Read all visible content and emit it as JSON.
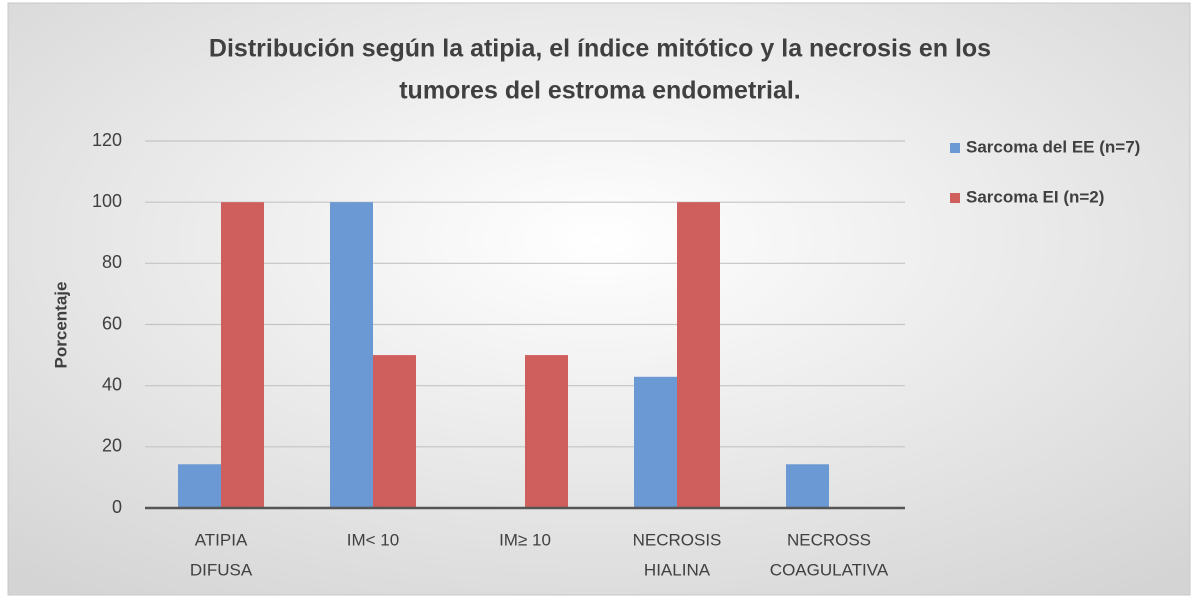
{
  "chart_data": {
    "type": "bar",
    "title": [
      "Distribución según la atipia, el índice mitótico y la necrosis en los",
      "tumores del estroma endometrial."
    ],
    "y_label": "Porcentaje",
    "categories": [
      [
        "ATIPIA",
        "DIFUSA"
      ],
      [
        "IM< 10"
      ],
      [
        "IM≥ 10"
      ],
      [
        "NECROSIS",
        "HIALINA"
      ],
      [
        "NECROSS",
        "COAGULATIVA"
      ]
    ],
    "series": [
      {
        "name": "Sarcoma del EE (n=7)",
        "color": "#6b99d3",
        "values": [
          14.3,
          100,
          0,
          42.9,
          14.3
        ]
      },
      {
        "name": "Sarcoma EI  (n=2)",
        "color": "#cf5f5d",
        "values": [
          100,
          50,
          50,
          100,
          0
        ]
      }
    ],
    "ylim": [
      0,
      120
    ],
    "yticks": [
      0,
      20,
      40,
      60,
      80,
      100,
      120
    ],
    "grid": true,
    "legend": "right"
  }
}
